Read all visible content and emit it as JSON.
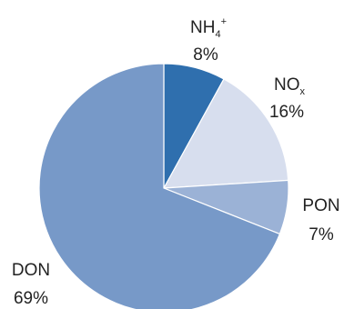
{
  "chart_data": {
    "type": "pie",
    "title": "",
    "slices": [
      {
        "label": "NH",
        "sub": "4",
        "sup": "+",
        "value": 8,
        "value_label": "8%",
        "color": "#2f6fae"
      },
      {
        "label": "NO",
        "sub": "x",
        "sup": "",
        "value": 16,
        "value_label": "16%",
        "color": "#d7deee"
      },
      {
        "label": "PON",
        "sub": "",
        "sup": "",
        "value": 7,
        "value_label": "7%",
        "color": "#9bb2d6"
      },
      {
        "label": "DON",
        "sub": "",
        "sup": "",
        "value": 69,
        "value_label": "69%",
        "color": "#7799c8"
      }
    ],
    "start_angle_deg": 0,
    "direction": "clockwise",
    "legend": "none"
  }
}
